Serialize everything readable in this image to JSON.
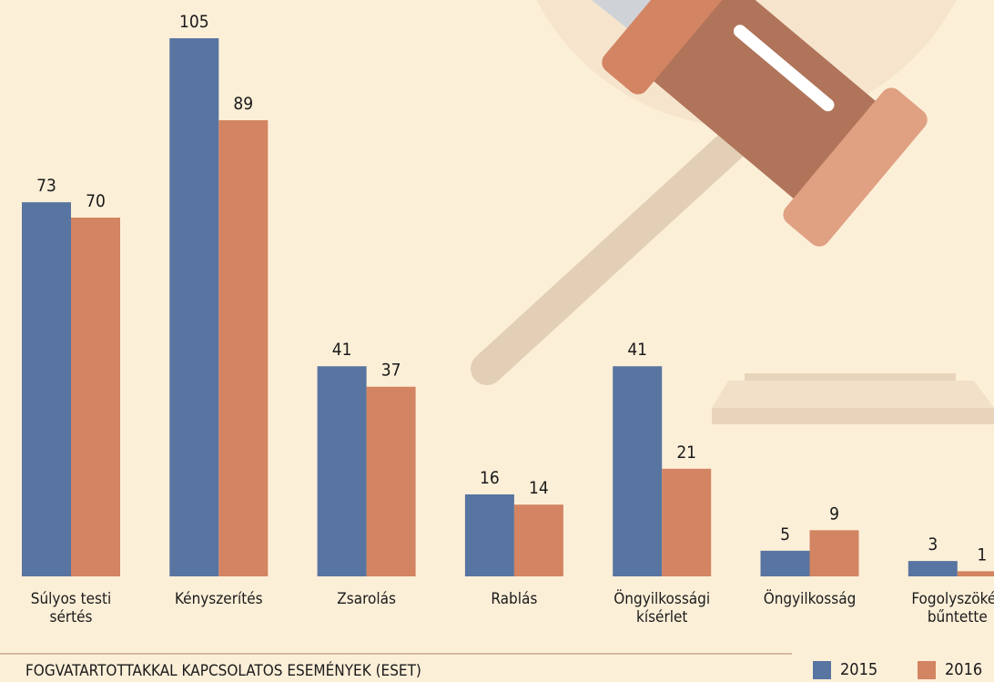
{
  "chart_data": {
    "type": "bar",
    "title": "FOGVATARTOTTAKKAL KAPCSOLATOS ESEMÉNYEK (ESET)",
    "categories": [
      "Súlyos testi sértés",
      "Kényszerítés",
      "Zsarolás",
      "Rablás",
      "Öngyilkossági kísérlet",
      "Öngyilkosság",
      "Fogolyszökés bűntette"
    ],
    "series": [
      {
        "name": "2015",
        "color": "#5874a0",
        "values": [
          73,
          105,
          41,
          16,
          41,
          5,
          3
        ]
      },
      {
        "name": "2016",
        "color": "#d38462",
        "values": [
          70,
          89,
          37,
          14,
          21,
          9,
          1
        ]
      }
    ],
    "ylim": [
      0,
      105
    ]
  }
}
